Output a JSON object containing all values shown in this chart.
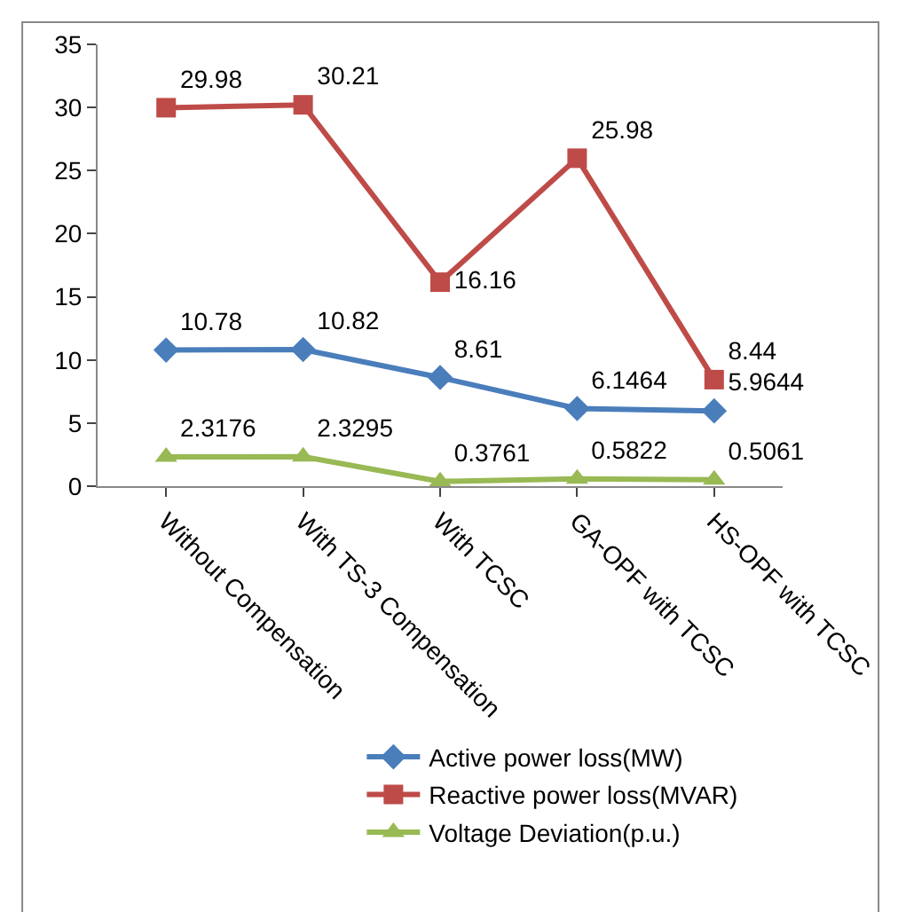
{
  "chart_data": {
    "type": "line",
    "categories": [
      "Without Compensation",
      "With TS-3 Compensation",
      "With TCSC",
      "GA-OPF with TCSC",
      "HS-OPF with TCSC"
    ],
    "series": [
      {
        "name": "Active power loss(MW)",
        "color": "#4a7ebb",
        "marker": "diamond",
        "values": [
          10.78,
          10.82,
          8.61,
          6.1464,
          5.9644
        ]
      },
      {
        "name": "Reactive power loss(MVAR)",
        "color": "#be4b48",
        "marker": "square",
        "values": [
          29.98,
          30.21,
          16.16,
          25.98,
          8.44
        ]
      },
      {
        "name": "Voltage Deviation(p.u.)",
        "color": "#98b954",
        "marker": "triangle",
        "values": [
          2.3176,
          2.3295,
          0.3761,
          0.5822,
          0.5061
        ]
      }
    ],
    "ylim": [
      0,
      35
    ],
    "yticks": [
      0,
      5,
      10,
      15,
      20,
      25,
      30,
      35
    ],
    "legend": "bottom",
    "data_labels": true,
    "line_style": "solid"
  }
}
